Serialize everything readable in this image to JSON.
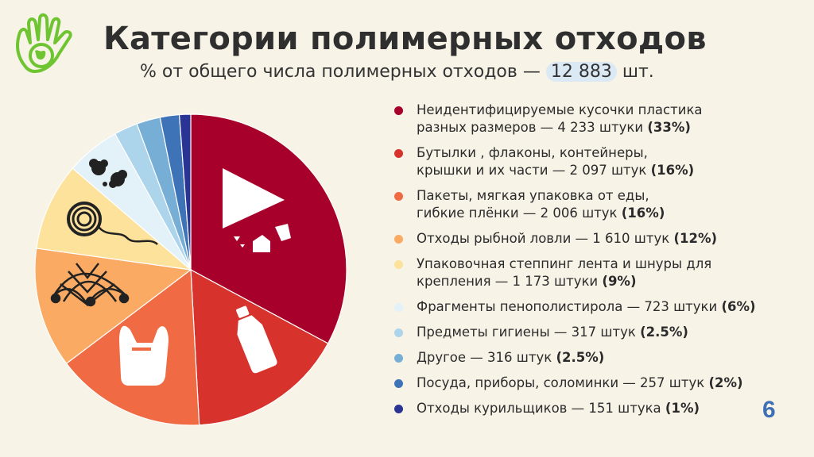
{
  "header": {
    "title": "Категории полимерных отходов",
    "subtitle_prefix": "% от общего числа полимерных отходов — ",
    "total": "12 883",
    "subtitle_suffix": " шт."
  },
  "page_number": "6",
  "chart_data": {
    "type": "pie",
    "slices": [
      {
        "line1": "Неидентифицируемые кусочки пластика",
        "line2": "разных размеров — 4 233 штуки ",
        "pct_label": "(33%)",
        "count": 4233,
        "pct": 33,
        "color": "#a7002a"
      },
      {
        "line1": "Бутылки , флаконы, контейнеры,",
        "line2": "крышки и их части — 2 097 штук ",
        "pct_label": "(16%)",
        "count": 2097,
        "pct": 16,
        "color": "#d7322c"
      },
      {
        "line1": "Пакеты, мягкая упаковка от еды,",
        "line2": "гибкие плёнки — 2 006 штук ",
        "pct_label": "(16%)",
        "count": 2006,
        "pct": 16,
        "color": "#f06a43"
      },
      {
        "line1": "Отходы рыбной ловли — 1 610 штук ",
        "line2": "",
        "pct_label": "(12%)",
        "count": 1610,
        "pct": 12,
        "color": "#fbaa63"
      },
      {
        "line1": "Упаковочная степпинг лента и шнуры для",
        "line2": "крепления — 1 173 штуки ",
        "pct_label": "(9%)",
        "count": 1173,
        "pct": 9,
        "color": "#fde29c"
      },
      {
        "line1": "Фрагменты пенополистирола — 723 штуки ",
        "line2": "",
        "pct_label": "(6%)",
        "count": 723,
        "pct": 6,
        "color": "#e3f1f9"
      },
      {
        "line1": "Предметы гигиены — 317 штук ",
        "line2": "",
        "pct_label": "(2.5%)",
        "count": 317,
        "pct": 2.5,
        "color": "#acd4ea"
      },
      {
        "line1": "Другое — 316 штук ",
        "line2": "",
        "pct_label": "(2.5%)",
        "count": 316,
        "pct": 2.5,
        "color": "#76aed6"
      },
      {
        "line1": "Посуда, приборы, соломинки — 257 штук ",
        "line2": "",
        "pct_label": "(2%)",
        "count": 257,
        "pct": 2,
        "color": "#3f73b7"
      },
      {
        "line1": "Отходы курильщиков — 151 штука ",
        "line2": "",
        "pct_label": "(1%)",
        "count": 151,
        "pct": 1,
        "color": "#2a3494"
      }
    ]
  }
}
